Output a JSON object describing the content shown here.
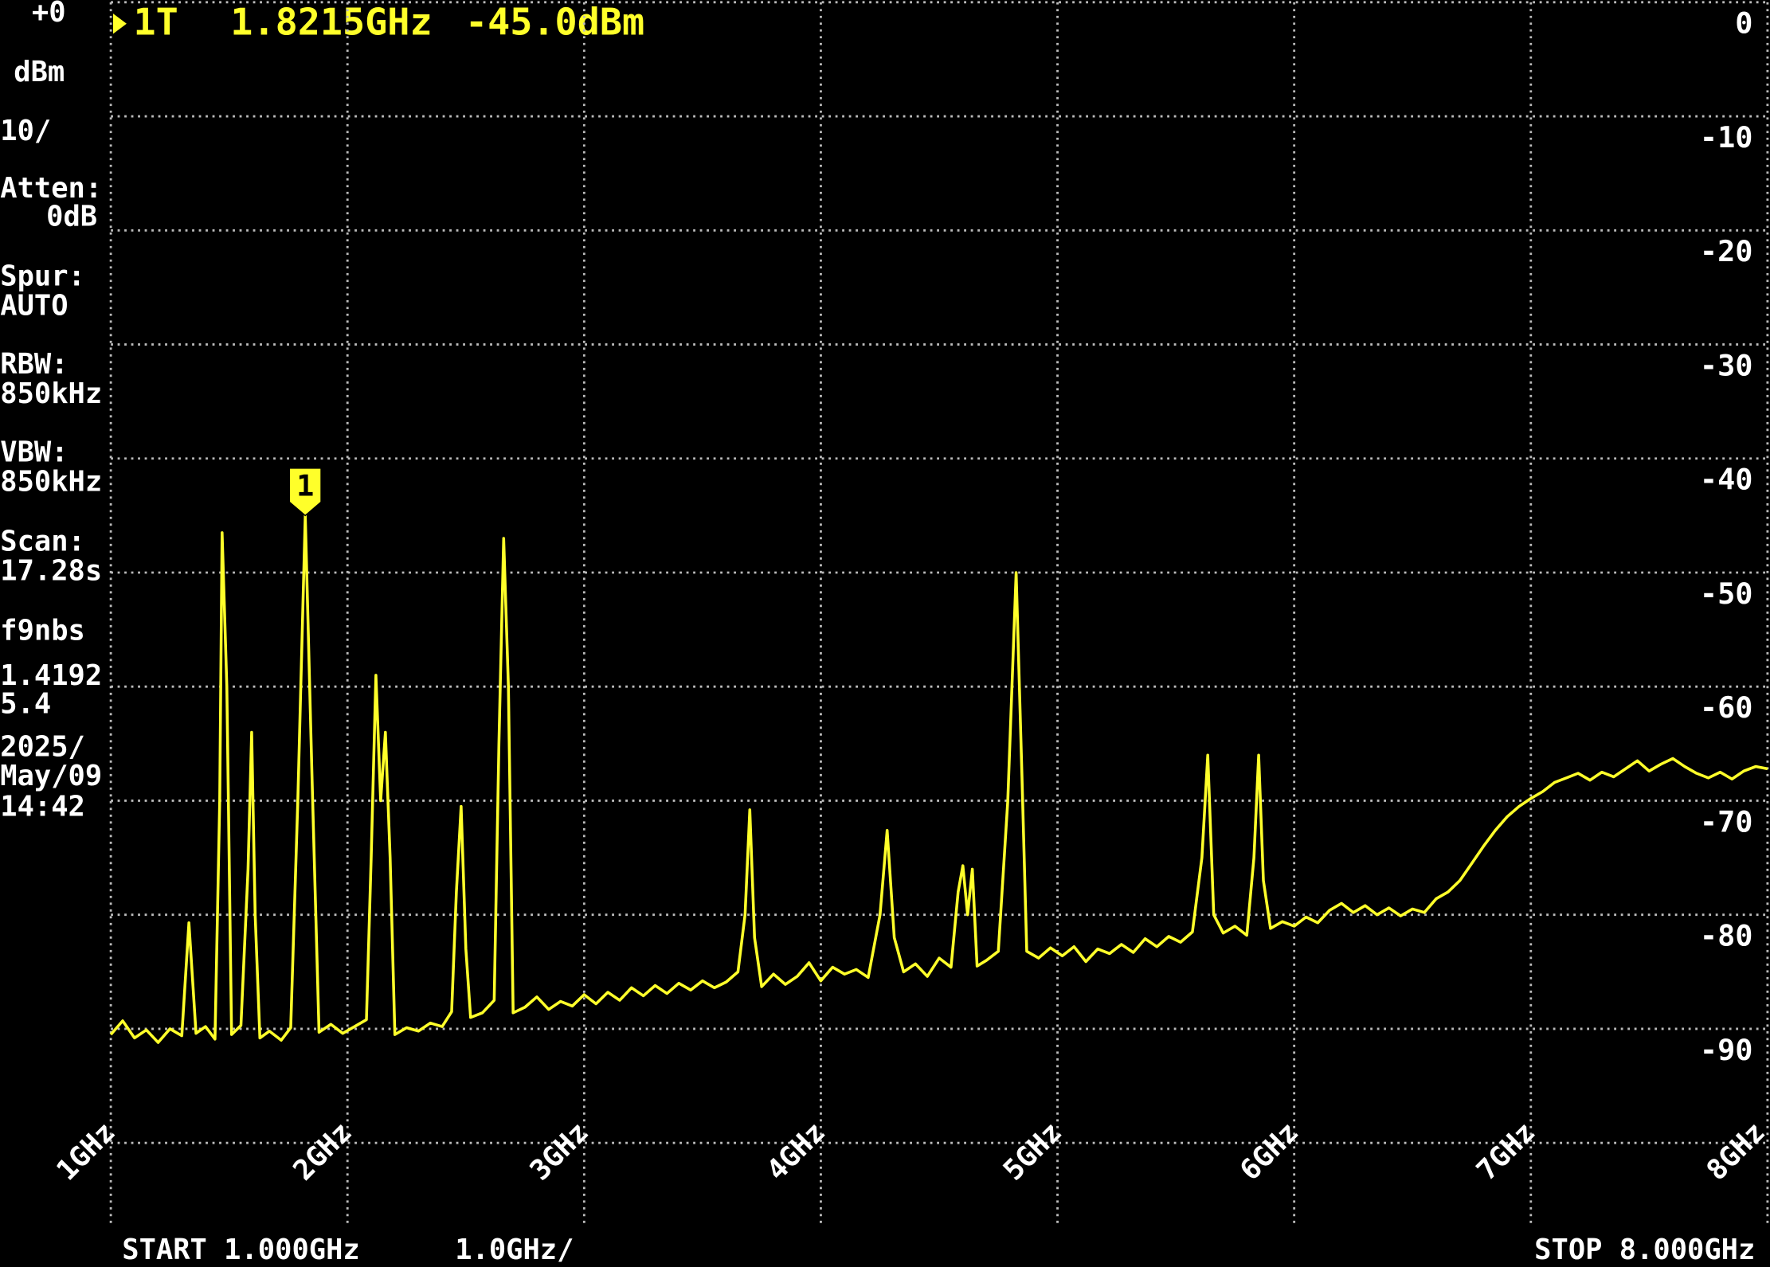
{
  "chart_data": {
    "type": "line",
    "marker_readout": {
      "id": "1T",
      "frequency": "1.8215GHz",
      "level": "-45.0dBm"
    },
    "marker": {
      "label": "1",
      "x": 1.8215,
      "value": -45.0
    },
    "sidebar": [
      "+0",
      "dBm",
      "10/",
      "Atten:",
      "0dB",
      "Spur:",
      "AUTO",
      "RBW:",
      "850kHz",
      "VBW:",
      "850kHz",
      "Scan:",
      "17.28s",
      "f9nbs",
      "1.4192",
      "5.4",
      "2025/",
      "May/09",
      "14:42"
    ],
    "footer": {
      "start": "START 1.000GHz",
      "span": "1.0GHz/",
      "stop": "STOP 8.000GHz"
    },
    "color": "#ffff2a",
    "grid": true,
    "xlim": [
      1,
      8
    ],
    "xticks": [
      {
        "value": 1,
        "label": "1GHz"
      },
      {
        "value": 2,
        "label": "2GHz"
      },
      {
        "value": 3,
        "label": "3GHz"
      },
      {
        "value": 4,
        "label": "4GHz"
      },
      {
        "value": 5,
        "label": "5GHz"
      },
      {
        "value": 6,
        "label": "6GHz"
      },
      {
        "value": 7,
        "label": "7GHz"
      },
      {
        "value": 8,
        "label": "8GHz"
      }
    ],
    "ylim": [
      -100,
      0
    ],
    "yticks": [
      0,
      -10,
      -20,
      -30,
      -40,
      -50,
      -60,
      -70,
      -80,
      -90
    ],
    "x": [
      1.0,
      1.05,
      1.1,
      1.15,
      1.2,
      1.25,
      1.3,
      1.33,
      1.36,
      1.4,
      1.44,
      1.46,
      1.47,
      1.49,
      1.51,
      1.55,
      1.58,
      1.595,
      1.61,
      1.63,
      1.67,
      1.72,
      1.76,
      1.79,
      1.8215,
      1.85,
      1.88,
      1.93,
      1.98,
      2.03,
      2.08,
      2.1,
      2.12,
      2.14,
      2.16,
      2.18,
      2.2,
      2.25,
      2.3,
      2.35,
      2.4,
      2.44,
      2.46,
      2.48,
      2.5,
      2.52,
      2.57,
      2.62,
      2.64,
      2.66,
      2.68,
      2.7,
      2.75,
      2.8,
      2.85,
      2.9,
      2.95,
      3.0,
      3.05,
      3.1,
      3.15,
      3.2,
      3.25,
      3.3,
      3.35,
      3.4,
      3.45,
      3.5,
      3.55,
      3.6,
      3.65,
      3.68,
      3.7,
      3.72,
      3.75,
      3.8,
      3.85,
      3.9,
      3.95,
      4.0,
      4.05,
      4.1,
      4.15,
      4.2,
      4.25,
      4.28,
      4.31,
      4.35,
      4.4,
      4.45,
      4.5,
      4.55,
      4.58,
      4.6,
      4.62,
      4.64,
      4.66,
      4.7,
      4.75,
      4.79,
      4.825,
      4.85,
      4.87,
      4.92,
      4.97,
      5.02,
      5.07,
      5.12,
      5.17,
      5.22,
      5.27,
      5.32,
      5.37,
      5.42,
      5.47,
      5.52,
      5.57,
      5.61,
      5.635,
      5.66,
      5.7,
      5.75,
      5.8,
      5.83,
      5.85,
      5.87,
      5.9,
      5.95,
      6.0,
      6.05,
      6.1,
      6.15,
      6.2,
      6.25,
      6.3,
      6.35,
      6.4,
      6.45,
      6.5,
      6.55,
      6.6,
      6.65,
      6.7,
      6.75,
      6.8,
      6.85,
      6.9,
      6.95,
      7.0,
      7.05,
      7.1,
      7.15,
      7.2,
      7.25,
      7.3,
      7.35,
      7.4,
      7.45,
      7.5,
      7.55,
      7.6,
      7.65,
      7.7,
      7.75,
      7.8,
      7.85,
      7.9,
      7.95,
      8.0
    ],
    "values": [
      -90.5,
      -89.3,
      -90.8,
      -90.1,
      -91.2,
      -90.0,
      -90.6,
      -80.7,
      -90.4,
      -89.8,
      -90.9,
      -70,
      -46.5,
      -60,
      -90.5,
      -89.7,
      -76,
      -64,
      -80,
      -90.8,
      -90.2,
      -91.0,
      -89.9,
      -70,
      -45.0,
      -68,
      -90.3,
      -89.6,
      -90.4,
      -89.8,
      -89.2,
      -75,
      -59,
      -70,
      -64,
      -75,
      -90.5,
      -89.9,
      -90.2,
      -89.5,
      -89.8,
      -88.5,
      -78,
      -70.5,
      -83,
      -89.0,
      -88.6,
      -87.5,
      -65,
      -47,
      -60,
      -88.6,
      -88.1,
      -87.2,
      -88.3,
      -87.6,
      -88.0,
      -87.0,
      -87.8,
      -86.8,
      -87.5,
      -86.4,
      -87.1,
      -86.2,
      -86.9,
      -86.0,
      -86.6,
      -85.8,
      -86.4,
      -85.9,
      -85.0,
      -80,
      -70.8,
      -82,
      -86.3,
      -85.2,
      -86.1,
      -85.4,
      -84.2,
      -85.8,
      -84.6,
      -85.2,
      -84.8,
      -85.5,
      -80,
      -72.6,
      -82,
      -85.0,
      -84.3,
      -85.4,
      -83.8,
      -84.6,
      -78,
      -75.7,
      -80,
      -76,
      -84.5,
      -84.0,
      -83.2,
      -70,
      -50,
      -68,
      -83.2,
      -83.8,
      -82.9,
      -83.6,
      -82.8,
      -84.1,
      -83.0,
      -83.4,
      -82.6,
      -83.3,
      -82.1,
      -82.8,
      -81.9,
      -82.4,
      -81.5,
      -75,
      -66,
      -80,
      -81.6,
      -81.0,
      -81.8,
      -75,
      -66,
      -77,
      -81.2,
      -80.6,
      -81.0,
      -80.2,
      -80.7,
      -79.6,
      -79.0,
      -79.8,
      -79.2,
      -80.0,
      -79.4,
      -80.1,
      -79.5,
      -79.8,
      -78.6,
      -78.0,
      -77.0,
      -75.5,
      -74.0,
      -72.6,
      -71.4,
      -70.5,
      -69.8,
      -69.2,
      -68.4,
      -68.0,
      -67.6,
      -68.2,
      -67.5,
      -67.9,
      -67.2,
      -66.5,
      -67.4,
      -66.8,
      -66.3,
      -67.0,
      -67.6,
      -68.0,
      -67.5,
      -68.1,
      -67.4,
      -67.0,
      -67.2
    ]
  }
}
